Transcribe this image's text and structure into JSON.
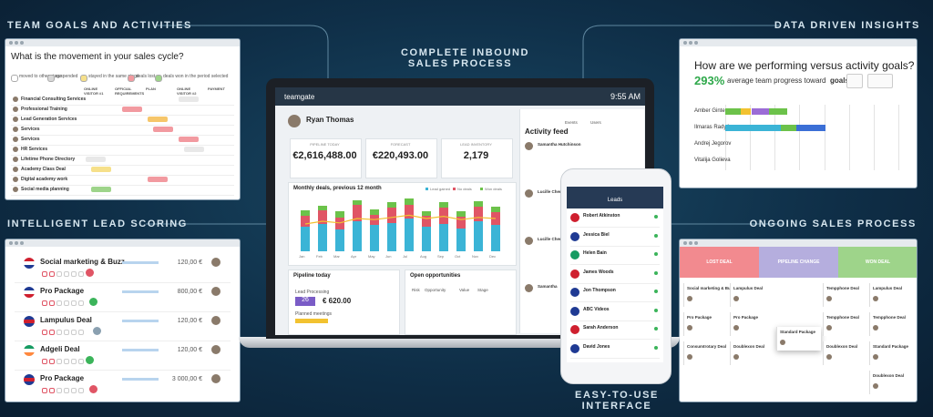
{
  "headings": {
    "team_goals": "TEAM GOALS AND ACTIVITIES",
    "lead_scoring": "INTELLIGENT LEAD SCORING",
    "inbound": [
      "COMPLETE INBOUND",
      "SALES PROCESS"
    ],
    "insights": "DATA DRIVEN INSIGHTS",
    "ongoing": "ONGOING SALES PROCESS",
    "easy": [
      "EASY-TO-USE",
      "INTERFACE"
    ]
  },
  "team_goals": {
    "title": "What is the movement in your sales cycle?",
    "legend": [
      "moved to other stage",
      "suspended",
      "stayed in the same stage",
      "deals lost",
      "deals won in the period selected"
    ],
    "stages": [
      "ONLINE VISITOR #1",
      "OFFICIAL REQUIREMENTS",
      "PLAN",
      "ONLINE VISITOR #2",
      "PAYMENT"
    ],
    "rows": [
      "Financial Consulting Services",
      "Professional Training",
      "Lead Generation Services",
      "Services",
      "Services",
      "HR Services",
      "Lifetime Phone Directory",
      "Academy Class Deal",
      "Digital academy work",
      "Social media planning"
    ]
  },
  "lead_scoring": {
    "rows": [
      {
        "name": "Social marketing & Buzz",
        "value": "120,00 €"
      },
      {
        "name": "Pro Package",
        "value": "800,00 €"
      },
      {
        "name": "Lampulus Deal",
        "value": "120,00 €"
      },
      {
        "name": "Adgeli Deal",
        "value": "120,00 €"
      },
      {
        "name": "Pro Package",
        "value": "3 000,00 €"
      }
    ]
  },
  "laptop": {
    "brand": "teamgate",
    "time": "9:55 AM",
    "user": "Ryan Thomas",
    "kpis": [
      {
        "label": "PIPELINE TODAY",
        "value": "€2,616,488.00"
      },
      {
        "label": "FORECAST",
        "value": "€220,493.00"
      },
      {
        "label": "LEAD INVENTORY",
        "value": "2,179"
      }
    ],
    "chart": {
      "title": "Monthly deals, previous 12 month",
      "legend": [
        "Lead gained",
        "No deals",
        "Won deals"
      ],
      "months": [
        "Jan",
        "Feb",
        "Mar",
        "Apr",
        "May",
        "Jun",
        "Jul",
        "Aug",
        "Sep",
        "Oct",
        "Nov",
        "Dec"
      ],
      "series": [
        {
          "name": "Lead gained",
          "color": "#3bb4d6",
          "values": [
            45,
            50,
            40,
            55,
            48,
            52,
            60,
            45,
            50,
            42,
            55,
            48
          ]
        },
        {
          "name": "No deals",
          "color": "#e05565",
          "values": [
            20,
            25,
            22,
            30,
            18,
            28,
            25,
            20,
            30,
            22,
            26,
            24
          ]
        },
        {
          "name": "Won deals",
          "color": "#6cc24a",
          "values": [
            10,
            8,
            12,
            9,
            11,
            10,
            12,
            8,
            10,
            9,
            11,
            10
          ]
        }
      ],
      "line": {
        "color": "#f2c230",
        "values": [
          50,
          55,
          52,
          60,
          58,
          62,
          66,
          60,
          64,
          58,
          62,
          60
        ]
      },
      "ylim": [
        0,
        100
      ]
    },
    "pipeline": {
      "title": "Pipeline today",
      "lead_processing": "Lead Processing",
      "count": "26",
      "amount": "€ 620.00",
      "planned": "Planned meetings"
    },
    "opportunities": {
      "title": "Open opportunities",
      "headers": [
        "Risk",
        "Opportunity",
        "Value",
        "Stage"
      ]
    },
    "activity": {
      "title": "Activity feed",
      "tabs": [
        "Events",
        "Users"
      ],
      "names": [
        "Samantha Hutchinson",
        "Lucille Cheng",
        "Lucille Cheng",
        "Samantha"
      ]
    }
  },
  "phone": {
    "title": "Leads",
    "leads": [
      "Robert Atkinston",
      "Jessica Biel",
      "Helen Bain",
      "James Woods",
      "Jon Thompson",
      "ABC Videos",
      "Sarah Anderson",
      "David Jones"
    ]
  },
  "insights": {
    "title": "How are we performing versus activity goals?",
    "percent": "293%",
    "caption": "average team progress toward",
    "button": "goals",
    "xlim": [
      0,
      100
    ],
    "people": [
      {
        "name": "Amber Gintere",
        "segments": [
          {
            "color": "#6cc24a",
            "value": 9
          },
          {
            "color": "#f2c230",
            "value": 6
          },
          {
            "color": "#9b6cd6",
            "value": 10
          },
          {
            "color": "#6cc24a",
            "value": 11
          }
        ]
      },
      {
        "name": "Ilmaras Radytins",
        "segments": [
          {
            "color": "#3bb4d6",
            "value": 32
          },
          {
            "color": "#6cc24a",
            "value": 9
          },
          {
            "color": "#3b6fd6",
            "value": 17
          }
        ]
      },
      {
        "name": "Andrej Jegorov",
        "segments": []
      },
      {
        "name": "Vitalija Golieva",
        "segments": []
      }
    ]
  },
  "ongoing": {
    "columns": [
      "LOST DEAL",
      "PIPELINE CHANGE",
      "WON DEAL"
    ],
    "cards": [
      [
        "Social marketing & Buzz",
        "Pro Package",
        "Consumtrotary Deal"
      ],
      [
        "Lampulus Deal",
        "Pro Package",
        "Doublexon Deal"
      ],
      [
        "Standard Package"
      ],
      [
        "Tempphone Deal",
        "Tempphone Deal",
        "Doublexon Deal"
      ],
      [
        "Lampulus Deal",
        "Tempphone Deal",
        "Standard Package",
        "Doublexon Deal"
      ]
    ]
  }
}
